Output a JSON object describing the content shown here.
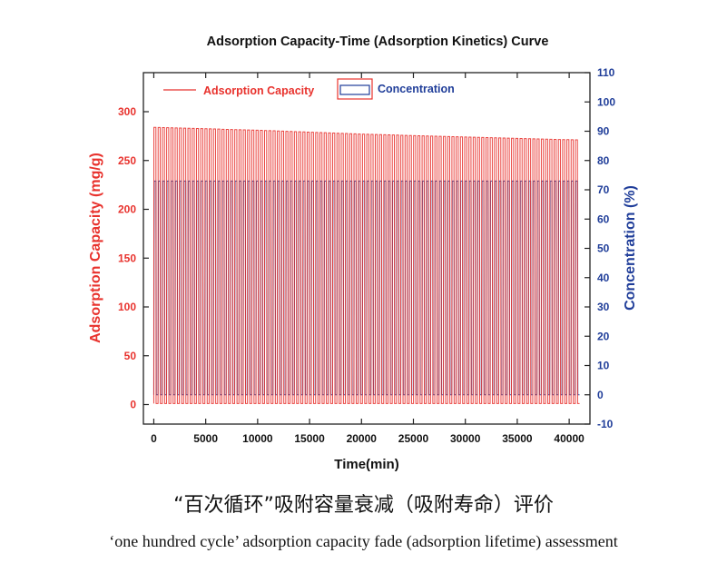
{
  "chart_data": {
    "type": "line",
    "title": "Adsorption Capacity-Time (Adsorption Kinetics) Curve",
    "xlabel": "Time(min)",
    "ylabel": "Adsorption Capacity (mg/g)",
    "y2label": "Concentration (%)",
    "xlim": [
      -1000,
      42000
    ],
    "ylim": [
      -20,
      340
    ],
    "y2lim": [
      -10,
      110
    ],
    "x_ticks": [
      0,
      5000,
      10000,
      15000,
      20000,
      25000,
      30000,
      35000,
      40000
    ],
    "y_ticks": [
      0,
      50,
      100,
      150,
      200,
      250,
      300
    ],
    "y2_ticks": [
      -10,
      0,
      10,
      20,
      30,
      40,
      50,
      60,
      70,
      80,
      90,
      100,
      110
    ],
    "cycles": 100,
    "legend_position": "top-left",
    "series": [
      {
        "name": "Adsorption Capacity",
        "axis": "left",
        "color": "#e8322d",
        "description_values": {
          "x": [
            0,
            10000,
            20000,
            30000,
            41000
          ],
          "peak": [
            284,
            281,
            277,
            274,
            271
          ],
          "trough": [
            1,
            1,
            1,
            1,
            1
          ]
        }
      },
      {
        "name": "Concentration",
        "axis": "right",
        "color": "#1f3d99",
        "description_values": {
          "x": [
            0,
            10000,
            20000,
            30000,
            41000
          ],
          "peak": [
            73,
            73,
            73,
            73,
            73
          ],
          "trough": [
            0,
            0,
            0,
            0,
            0
          ]
        }
      }
    ]
  },
  "caption": {
    "chinese": "“百次循环”吸附容量衰减（吸附寿命）评价",
    "english": "‘one hundred cycle’ adsorption capacity fade (adsorption lifetime) assessment"
  }
}
